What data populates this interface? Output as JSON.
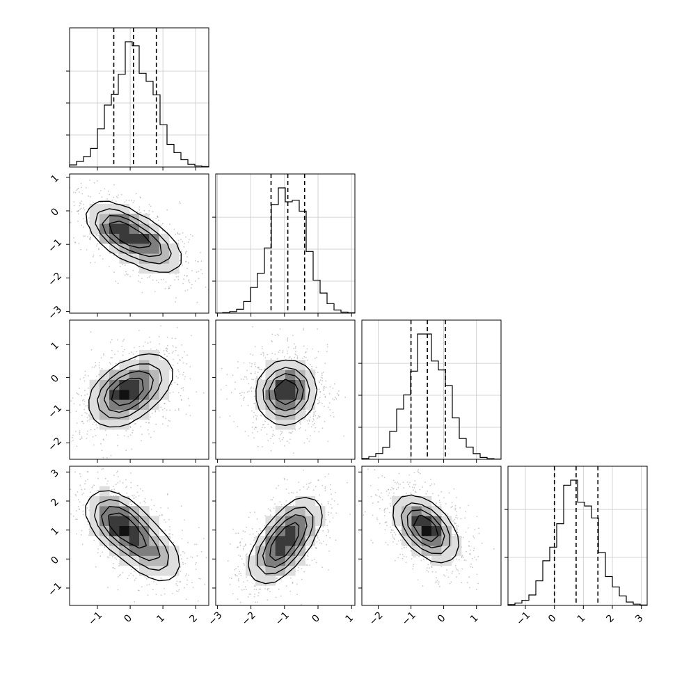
{
  "chart_data": {
    "type": "corner",
    "n_params": 4,
    "quantiles": [
      0.16,
      0.5,
      0.84
    ],
    "levels": [
      0.118,
      0.393,
      0.675,
      0.865
    ],
    "colors": {
      "line": "#000000",
      "grid": "#c8c8c8",
      "fill_dark": "#222222"
    },
    "params": [
      {
        "mean": 0.1,
        "sd": 0.65,
        "range": [
          -1.85,
          2.4
        ],
        "ticks": [
          -1,
          0,
          1,
          2
        ],
        "tick_labels": [
          "−1",
          "0",
          "1",
          "2"
        ],
        "quantile_values": [
          -0.5,
          0.1,
          0.8
        ]
      },
      {
        "mean": -0.9,
        "sd": 0.55,
        "range": [
          -3.05,
          1.1
        ],
        "ticks": [
          -3,
          -2,
          -1,
          0,
          1
        ],
        "tick_labels": [
          "−3",
          "−2",
          "−1",
          "0",
          "1"
        ],
        "quantile_values": [
          -1.4,
          -0.9,
          -0.4
        ]
      },
      {
        "mean": -0.5,
        "sd": 0.6,
        "range": [
          -2.5,
          1.75
        ],
        "ticks": [
          -2,
          -1,
          0,
          1
        ],
        "tick_labels": [
          "−2",
          "−1",
          "0",
          "1"
        ],
        "quantile_values": [
          -1.0,
          -0.5,
          0.05
        ]
      },
      {
        "mean": 0.75,
        "sd": 0.7,
        "range": [
          -1.6,
          3.2
        ],
        "ticks": [
          -1,
          0,
          1,
          2,
          3
        ],
        "tick_labels": [
          "−1",
          "0",
          "1",
          "2",
          "3"
        ],
        "quantile_values": [
          0.0,
          0.75,
          1.5
        ]
      }
    ],
    "diag_ticks": [
      {
        "ticks": [
          0.1,
          0.2,
          0.3
        ]
      },
      {
        "ticks": [
          0.2,
          0.4,
          0.6
        ]
      },
      {
        "ticks": [
          0.2,
          0.4,
          0.6
        ]
      },
      {
        "ticks": [
          0.2,
          0.4
        ]
      }
    ],
    "panels": [
      {
        "row": 1,
        "col": 0,
        "rho": -0.5,
        "modes": [
          [
            -0.3,
            -0.6,
            1.0
          ],
          [
            0.65,
            -1.05,
            0.65
          ]
        ]
      },
      {
        "row": 2,
        "col": 0,
        "rho": 0.3,
        "modes": [
          [
            -0.25,
            -0.55,
            1.0
          ],
          [
            0.45,
            -0.1,
            0.5
          ]
        ]
      },
      {
        "row": 2,
        "col": 1,
        "rho": 0.05,
        "modes": [
          [
            -0.95,
            -0.45,
            1.0
          ]
        ]
      },
      {
        "row": 3,
        "col": 0,
        "rho": -0.45,
        "modes": [
          [
            -0.3,
            1.2,
            1.0
          ],
          [
            0.6,
            0.25,
            0.6
          ]
        ]
      },
      {
        "row": 3,
        "col": 1,
        "rho": 0.45,
        "modes": [
          [
            -1.2,
            0.25,
            1.0
          ],
          [
            -0.7,
            1.1,
            0.8
          ]
        ]
      },
      {
        "row": 3,
        "col": 2,
        "rho": -0.5,
        "modes": [
          [
            -0.55,
            1.05,
            1.0
          ]
        ]
      }
    ]
  }
}
